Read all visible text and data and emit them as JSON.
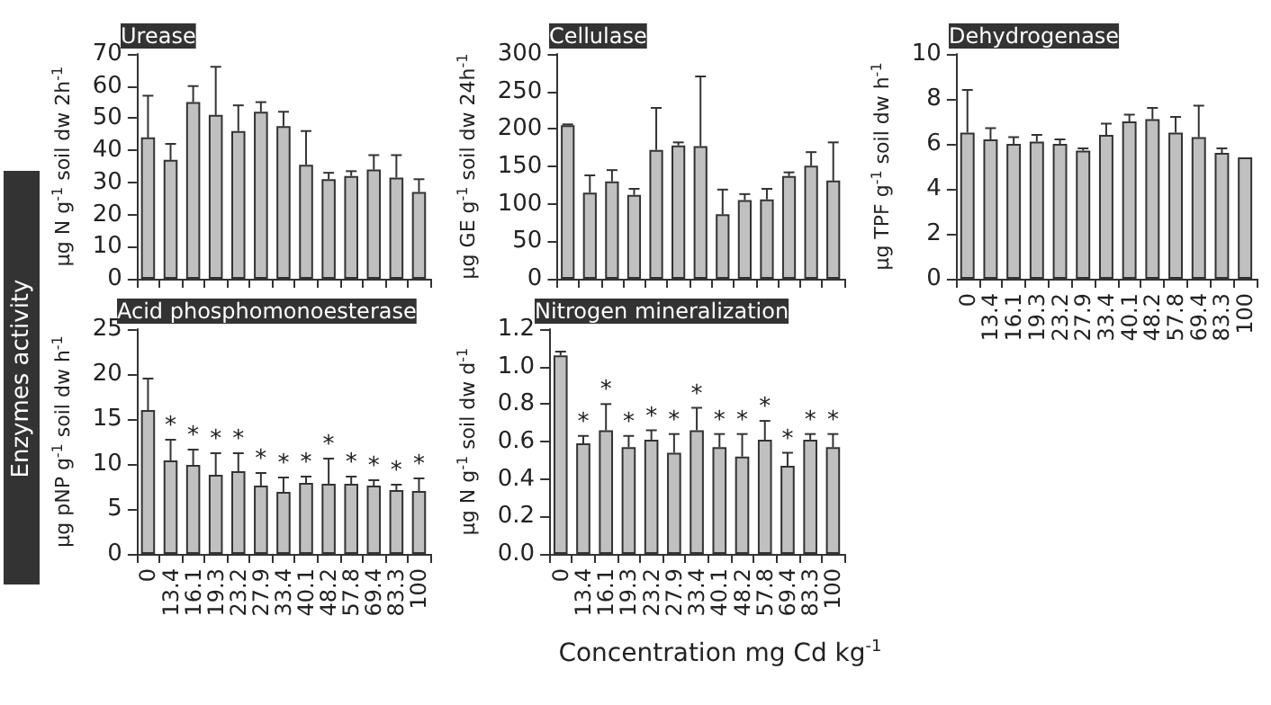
{
  "chart_data": [
    {
      "type": "bar",
      "title": "Urease",
      "ylabel": "μg N g$^{-1}$ soil dw 2h$^{-1}$",
      "annotations": [
        "Enzymes activity"
      ],
      "tick_labels": "y",
      "categories": [
        "0",
        "13.4",
        "16.1",
        "19.3",
        "23.2",
        "27.9",
        "33.4",
        "40.1",
        "48.2",
        "57.8",
        "69.4",
        "83.3",
        "100"
      ],
      "color": "#c0c0c0",
      "values": [
        44,
        37,
        55,
        51,
        46,
        52,
        47.5,
        35.5,
        31,
        32,
        34,
        31.5,
        27
      ],
      "errors": [
        [
          44,
          57
        ],
        [
          37,
          42
        ],
        [
          55,
          60
        ],
        [
          51,
          66
        ],
        [
          46,
          54
        ],
        [
          52,
          55
        ],
        [
          47.5,
          52
        ],
        [
          35.5,
          46
        ],
        [
          31,
          33
        ],
        [
          32,
          33.5
        ],
        [
          34,
          38.5
        ],
        [
          31.5,
          38.5
        ],
        [
          27,
          31
        ]
      ],
      "ylim": [
        0,
        70
      ],
      "yticks": [
        0,
        10,
        20,
        30,
        40,
        50,
        60,
        70
      ]
    },
    {
      "type": "bar",
      "title": "Cellulase",
      "ylabel": "μg GE g$^{-1}$ soil dw 24h$^{-1}$",
      "tick_labels": "y",
      "categories": [
        "0",
        "13.4",
        "16.1",
        "19.3",
        "23.2",
        "27.9",
        "33.4",
        "40.1",
        "48.2",
        "57.8",
        "69.4",
        "83.3",
        "100"
      ],
      "color": "#c0c0c0",
      "values": [
        205,
        115,
        130,
        112,
        172,
        178,
        177,
        86,
        105,
        106,
        137,
        151,
        131
      ],
      "errors": [
        [
          205,
          206
        ],
        [
          115,
          138
        ],
        [
          130,
          145
        ],
        [
          112,
          120
        ],
        [
          172,
          228
        ],
        [
          178,
          182
        ],
        [
          177,
          270
        ],
        [
          86,
          119
        ],
        [
          105,
          113
        ],
        [
          106,
          120
        ],
        [
          137,
          142
        ],
        [
          151,
          169
        ],
        [
          131,
          182
        ]
      ],
      "ylim": [
        0,
        300
      ],
      "yticks": [
        0,
        50,
        100,
        150,
        200,
        250,
        300
      ]
    },
    {
      "type": "bar",
      "title": "Dehydrogenase",
      "ylabel": "μg TPF g$^{-1}$ soil dw h$^{-1}$",
      "categories": [
        "0",
        "13.4",
        "16.1",
        "19.3",
        "23.2",
        "27.9",
        "33.4",
        "40.1",
        "48.2",
        "57.8",
        "69.4",
        "83.3",
        "100"
      ],
      "color": "#c0c0c0",
      "values": [
        6.5,
        6.2,
        6.0,
        6.1,
        6.0,
        5.7,
        6.4,
        7.0,
        7.1,
        6.5,
        6.3,
        5.6,
        5.4
      ],
      "errors": [
        [
          6.5,
          8.4
        ],
        [
          6.2,
          6.7
        ],
        [
          6.0,
          6.3
        ],
        [
          6.1,
          6.4
        ],
        [
          6.0,
          6.2
        ],
        [
          5.7,
          5.8
        ],
        [
          6.4,
          6.9
        ],
        [
          7.0,
          7.3
        ],
        [
          7.1,
          7.6
        ],
        [
          6.5,
          7.2
        ],
        [
          6.3,
          7.7
        ],
        [
          5.6,
          5.8
        ],
        null
      ],
      "ylim": [
        0,
        10
      ],
      "yticks": [
        0,
        2,
        4,
        6,
        8,
        10
      ]
    },
    {
      "type": "bar",
      "title": "Acid phosphomonoesterase",
      "ylabel": "μg pNP g$^{-1}$ soil dw h$^{-1}$",
      "categories": [
        "0",
        "13.4",
        "16.1",
        "19.3",
        "23.2",
        "27.9",
        "33.4",
        "40.1",
        "48.2",
        "57.8",
        "69.4",
        "83.3",
        "100"
      ],
      "color": "#c0c0c0",
      "values": [
        16,
        10.4,
        9.9,
        8.8,
        9.2,
        7.6,
        6.9,
        7.9,
        7.8,
        7.8,
        7.6,
        7.1,
        7.0
      ],
      "errors": [
        [
          16,
          19.5
        ],
        [
          10.4,
          12.7
        ],
        [
          9.9,
          11.6
        ],
        [
          8.8,
          11.2
        ],
        [
          9.2,
          11.2
        ],
        [
          7.6,
          9.0
        ],
        [
          6.9,
          8.5
        ],
        [
          7.9,
          8.6
        ],
        [
          7.8,
          10.6
        ],
        [
          7.8,
          8.6
        ],
        [
          7.6,
          8.2
        ],
        [
          7.1,
          7.7
        ],
        [
          7.0,
          8.4
        ]
      ],
      "annotations": [
        {
          "text": "*",
          "x": "13.4",
          "y": 12.7
        },
        {
          "text": "*",
          "x": "16.1",
          "y": 11.6
        },
        {
          "text": "*",
          "x": "19.3",
          "y": 11.2
        },
        {
          "text": "*",
          "x": "23.2",
          "y": 11.2
        },
        {
          "text": "*",
          "x": "27.9",
          "y": 9.0
        },
        {
          "text": "*",
          "x": "33.4",
          "y": 8.5
        },
        {
          "text": "*",
          "x": "40.1",
          "y": 8.6
        },
        {
          "text": "*",
          "x": "48.2",
          "y": 10.6
        },
        {
          "text": "*",
          "x": "57.8",
          "y": 8.6
        },
        {
          "text": "*",
          "x": "69.4",
          "y": 8.2
        },
        {
          "text": "*",
          "x": "83.3",
          "y": 7.7
        },
        {
          "text": "*",
          "x": "100",
          "y": 8.4
        }
      ],
      "ylim": [
        0,
        25
      ],
      "yticks": [
        0,
        5,
        10,
        15,
        20,
        25
      ]
    },
    {
      "type": "bar",
      "title": "Nitrogen mineralization",
      "ylabel": "μg N g$^{-1}$ soil dw d$^{-1}$",
      "categories": [
        "0",
        "13.4",
        "16.1",
        "19.3",
        "23.2",
        "27.9",
        "33.4",
        "40.1",
        "48.2",
        "57.8",
        "69.4",
        "83.3",
        "100"
      ],
      "color": "#c0c0c0",
      "values": [
        1.06,
        0.59,
        0.66,
        0.57,
        0.61,
        0.54,
        0.66,
        0.57,
        0.52,
        0.61,
        0.47,
        0.61,
        0.57
      ],
      "errors": [
        [
          1.06,
          1.08
        ],
        [
          0.59,
          0.63
        ],
        [
          0.66,
          0.8
        ],
        [
          0.57,
          0.63
        ],
        [
          0.61,
          0.66
        ],
        [
          0.54,
          0.64
        ],
        [
          0.66,
          0.78
        ],
        [
          0.57,
          0.64
        ],
        [
          0.52,
          0.64
        ],
        [
          0.61,
          0.71
        ],
        [
          0.47,
          0.54
        ],
        [
          0.61,
          0.64
        ],
        [
          0.57,
          0.64
        ]
      ],
      "annotations": [
        {
          "text": "*",
          "x": "13.4",
          "y": 0.63
        },
        {
          "text": "*",
          "x": "16.1",
          "y": 0.8
        },
        {
          "text": "*",
          "x": "19.3",
          "y": 0.63
        },
        {
          "text": "*",
          "x": "23.2",
          "y": 0.66
        },
        {
          "text": "*",
          "x": "27.9",
          "y": 0.64
        },
        {
          "text": "*",
          "x": "33.4",
          "y": 0.78
        },
        {
          "text": "*",
          "x": "40.1",
          "y": 0.64
        },
        {
          "text": "*",
          "x": "48.2",
          "y": 0.64
        },
        {
          "text": "*",
          "x": "57.8",
          "y": 0.71
        },
        {
          "text": "*",
          "x": "69.4",
          "y": 0.54
        },
        {
          "text": "*",
          "x": "83.3",
          "y": 0.64
        },
        {
          "text": "*",
          "x": "100",
          "y": 0.64
        },
        "Concentration  mg Cd kg$^{-1}$"
      ],
      "ylim": [
        0,
        1.2
      ],
      "yticks": [
        {
          "value": 0,
          "label": "0.0"
        },
        {
          "value": 0.2,
          "label": "0.2"
        },
        {
          "value": 0.4,
          "label": "0.4"
        },
        {
          "value": 0.6,
          "label": "0.6"
        },
        {
          "value": 0.8,
          "label": "0.8"
        },
        {
          "value": 1.0,
          "label": "1.0"
        },
        {
          "value": 1.2,
          "label": "1.2"
        }
      ]
    }
  ]
}
